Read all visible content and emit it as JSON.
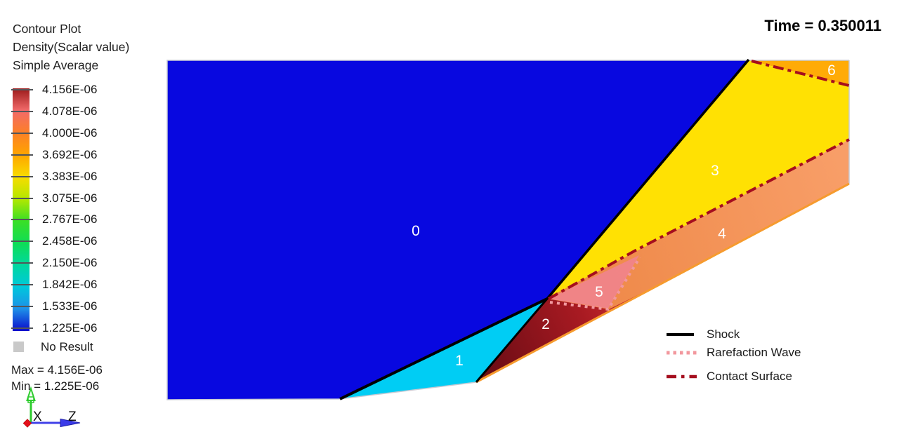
{
  "header": {
    "title": "Contour Plot",
    "scalar": "Density(Scalar value)",
    "averaging": "Simple Average"
  },
  "time_label": "Time = 0.350011",
  "colorbar": {
    "values": [
      "4.156E-06",
      "4.078E-06",
      "4.000E-06",
      "3.692E-06",
      "3.383E-06",
      "3.075E-06",
      "2.767E-06",
      "2.458E-06",
      "2.150E-06",
      "1.842E-06",
      "1.533E-06",
      "1.225E-06"
    ],
    "gradient_stops": [
      "#9B1A1A",
      "#F26A6A",
      "#FC7F28",
      "#FFA400",
      "#F8DC00",
      "#B5E800",
      "#3ADF25",
      "#10DD55",
      "#00D89E",
      "#00C8DC",
      "#1E90E8",
      "#0A0ACC"
    ],
    "no_result_label": "No Result",
    "no_result_color": "#C9C9C9",
    "max_label": "Max =  4.156E-06",
    "min_label": "Min =  1.225E-06"
  },
  "axes": {
    "x_label": "X",
    "z_label": "Z"
  },
  "wave_legend": [
    {
      "label": "Shock",
      "color": "#000000",
      "style": "solid"
    },
    {
      "label": "Rarefaction Wave",
      "color": "#F2989E",
      "style": "dotted"
    },
    {
      "label": "Contact Surface",
      "color": "#A50E1E",
      "style": "dashdot"
    }
  ],
  "plot": {
    "regions": [
      {
        "label": "0",
        "color": "#0808E0"
      },
      {
        "label": "1",
        "color": "#00CDF4"
      },
      {
        "label": "2",
        "color": "#A81A22"
      },
      {
        "label": "3",
        "color": "#FFE103"
      },
      {
        "label": "4",
        "color": "#F4915A"
      },
      {
        "label": "5",
        "color": "#F0838E"
      },
      {
        "label": "6",
        "color": "#FFAB07"
      }
    ],
    "region2_gradient": [
      "#6E0D15",
      "#A81A22",
      "#CE3030",
      "#F4915A"
    ],
    "region4_gradient": [
      "#EF8A4A",
      "#F89E68"
    ]
  },
  "chart_data": {
    "type": "contour",
    "title": "Contour Plot",
    "scalar": "Density(Scalar value)",
    "averaging": "Simple Average",
    "time": 0.350011,
    "levels": [
      4.156e-06,
      4.078e-06,
      4e-06,
      3.692e-06,
      3.383e-06,
      3.075e-06,
      2.767e-06,
      2.458e-06,
      2.15e-06,
      1.842e-06,
      1.533e-06,
      1.225e-06
    ],
    "max": 4.156e-06,
    "min": 1.225e-06,
    "legend_position": "left",
    "regions": [
      {
        "label": "0",
        "color": "#0808E0",
        "approx_density": 1.225e-06
      },
      {
        "label": "1",
        "color": "#00CDF4",
        "approx_density": 1.65e-06
      },
      {
        "label": "2",
        "color": "#A81A22",
        "approx_density": 4.12e-06
      },
      {
        "label": "3",
        "color": "#FFE103",
        "approx_density": 3.45e-06
      },
      {
        "label": "4",
        "color": "#F4915A",
        "approx_density": 3.95e-06
      },
      {
        "label": "5",
        "color": "#F0838E",
        "approx_density": 4.05e-06
      },
      {
        "label": "6",
        "color": "#FFAB07",
        "approx_density": 3.7e-06
      }
    ],
    "features": [
      "Shock",
      "Rarefaction Wave",
      "Contact Surface"
    ],
    "axes": [
      "X",
      "Z"
    ]
  }
}
